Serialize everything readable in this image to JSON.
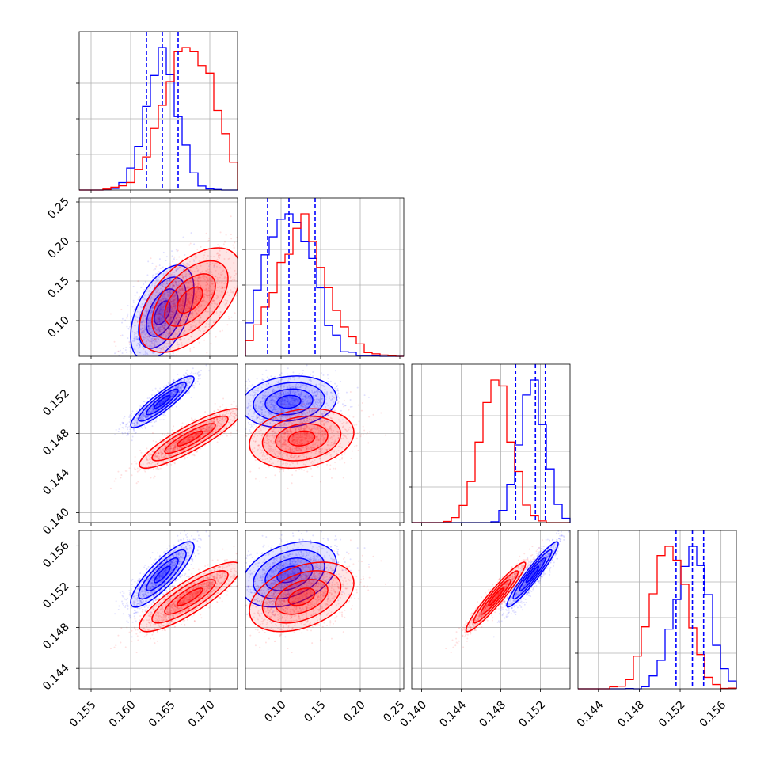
{
  "chart_data": {
    "type": "corner",
    "grid": true,
    "series": [
      {
        "color": "#0000ff",
        "means": [
          0.164,
          0.11,
          0.1512,
          0.1532
        ],
        "stds": [
          0.002,
          0.03,
          0.0013,
          0.0016
        ],
        "correlations": [
          [
            1,
            0.5,
            0.9,
            0.85
          ],
          [
            0.5,
            1,
            0.15,
            0.35
          ],
          [
            0.9,
            0.15,
            1,
            0.95
          ],
          [
            0.85,
            0.35,
            0.95,
            1
          ]
        ],
        "quantiles": [
          [
            0.162,
            0.164,
            0.166
          ],
          [
            0.083,
            0.11,
            0.143
          ],
          [
            0.1495,
            0.1515,
            0.1525
          ],
          [
            0.1516,
            0.1532,
            0.1543
          ]
        ]
      },
      {
        "color": "#ff0000",
        "means": [
          0.1675,
          0.126,
          0.1475,
          0.151
        ],
        "stds": [
          0.0032,
          0.033,
          0.0015,
          0.0017
        ],
        "correlations": [
          [
            1,
            0.55,
            0.88,
            0.85
          ],
          [
            0.55,
            1,
            0.2,
            0.4
          ],
          [
            0.88,
            0.2,
            1,
            0.95
          ],
          [
            0.85,
            0.4,
            0.95,
            1
          ]
        ]
      }
    ],
    "panels": [
      {
        "range": [
          0.1535,
          0.1735
        ],
        "ticks": [
          0.155,
          0.16,
          0.165,
          0.17
        ],
        "tick_labels": [
          "0.155",
          "0.160",
          "0.165",
          "0.170"
        ]
      },
      {
        "range": [
          0.055,
          0.255
        ],
        "ticks": [
          0.1,
          0.15,
          0.2,
          0.25
        ],
        "tick_labels": [
          "0.10",
          "0.15",
          "0.20",
          "0.25"
        ]
      },
      {
        "range": [
          0.139,
          0.155
        ],
        "ticks": [
          0.14,
          0.144,
          0.148,
          0.152
        ],
        "tick_labels": [
          "0.140",
          "0.144",
          "0.148",
          "0.152"
        ]
      },
      {
        "range": [
          0.142,
          0.1575
        ],
        "ticks": [
          0.144,
          0.148,
          0.152,
          0.156
        ],
        "tick_labels": [
          "0.144",
          "0.148",
          "0.152",
          "0.156"
        ]
      }
    ]
  }
}
